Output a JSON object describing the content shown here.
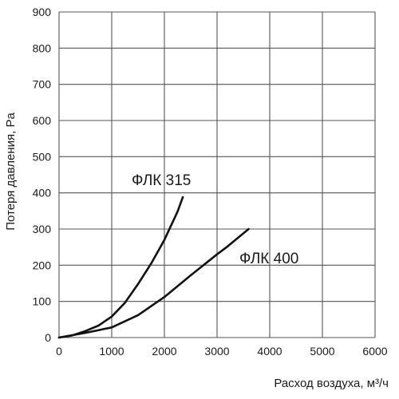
{
  "chart_data": {
    "type": "line",
    "xlabel": "Расход воздуха, м³/ч",
    "ylabel": "Потеря давления, Pa",
    "xlim": [
      0,
      6000
    ],
    "ylim": [
      0,
      900
    ],
    "x_ticks": [
      0,
      1000,
      2000,
      3000,
      4000,
      5000,
      6000
    ],
    "y_ticks": [
      0,
      100,
      200,
      300,
      400,
      500,
      600,
      700,
      800,
      900
    ],
    "grid": true,
    "series": [
      {
        "name": "ФЛК 315",
        "x": [
          0,
          250,
          500,
          750,
          1000,
          1250,
          1500,
          1750,
          2000,
          2250,
          2350
        ],
        "y": [
          0,
          6,
          18,
          33,
          58,
          96,
          148,
          205,
          270,
          348,
          388
        ]
      },
      {
        "name": "ФЛК 400",
        "x": [
          0,
          500,
          1000,
          1500,
          2000,
          2500,
          3000,
          3200,
          3500,
          3600
        ],
        "y": [
          0,
          13,
          28,
          62,
          112,
          172,
          230,
          252,
          288,
          300
        ]
      }
    ]
  }
}
